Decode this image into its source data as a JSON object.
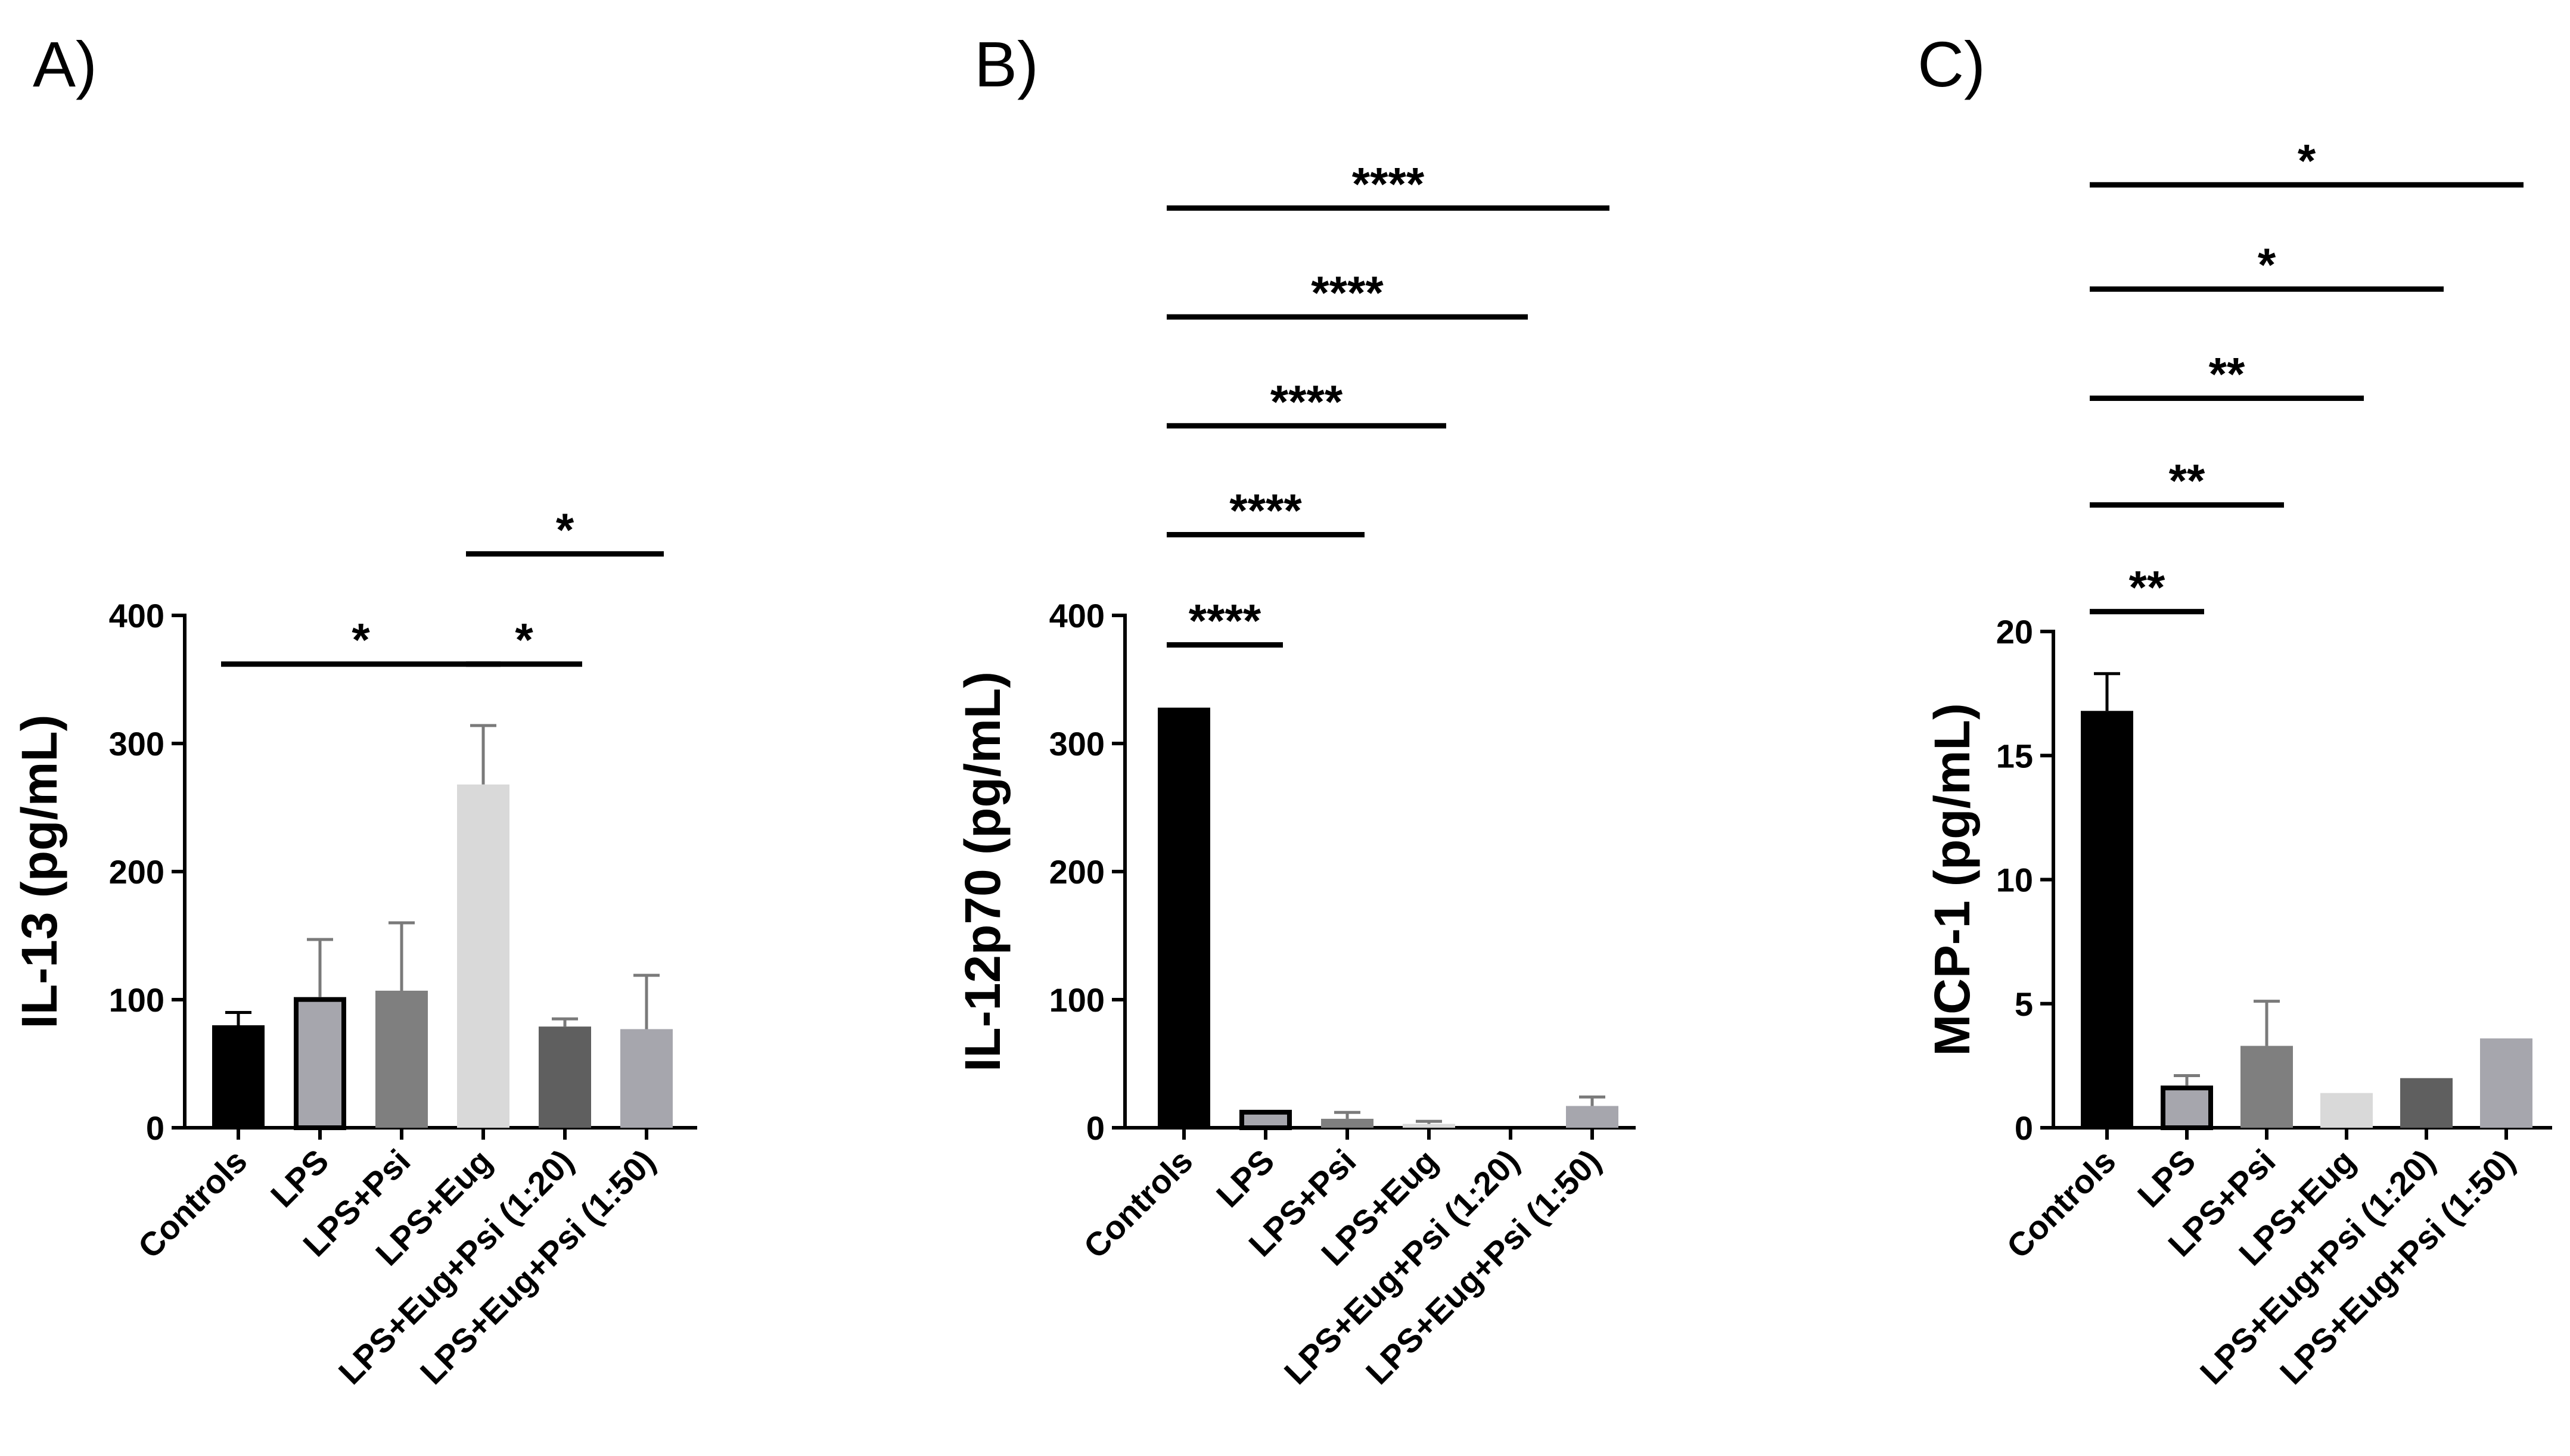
{
  "chart_data": [
    {
      "type": "bar",
      "panel_label": "A)",
      "title": "",
      "xlabel": "",
      "ylabel": "IL-13 (pg/mL)",
      "ylim": [
        0,
        400
      ],
      "yticks": [
        "0",
        "100",
        "200",
        "300",
        "400"
      ],
      "categories": [
        "Controls",
        "LPS",
        "LPS+Psi",
        "LPS+Eug",
        "LPS+Eug+Psi (1:20)",
        "LPS+Eug+Psi (1:50)"
      ],
      "values": [
        80,
        102,
        107,
        268,
        79,
        77
      ],
      "errors": [
        10,
        45,
        53,
        46,
        6,
        42
      ],
      "colors": [
        "#000000",
        "#a6a6ad",
        "#7f7f7f",
        "#d9d9d9",
        "#5f5f5f",
        "#a6a6ad"
      ],
      "outlined": [
        false,
        true,
        false,
        false,
        false,
        false
      ],
      "significance": [
        {
          "from": 0,
          "to": 3,
          "label": "*",
          "y": 362
        },
        {
          "from": 3,
          "to": 4,
          "label": "*",
          "y": 362
        },
        {
          "from": 3,
          "to": 5,
          "label": "*",
          "y": 448
        }
      ]
    },
    {
      "type": "bar",
      "panel_label": "B)",
      "title": "",
      "xlabel": "",
      "ylabel": "IL-12p70 (pg/mL)",
      "ylim": [
        0,
        400
      ],
      "yticks": [
        "0",
        "100",
        "200",
        "300",
        "400"
      ],
      "categories": [
        "Controls",
        "LPS",
        "LPS+Psi",
        "LPS+Eug",
        "LPS+Eug+Psi (1:20)",
        "LPS+Eug+Psi (1:50)"
      ],
      "values": [
        328,
        14,
        7,
        3,
        0,
        17
      ],
      "errors": [
        0,
        0,
        5,
        2,
        0,
        7
      ],
      "colors": [
        "#000000",
        "#a6a6ad",
        "#7f7f7f",
        "#d9d9d9",
        "#5f5f5f",
        "#a6a6ad"
      ],
      "outlined": [
        false,
        true,
        false,
        false,
        false,
        false
      ],
      "significance": [
        {
          "from": 0,
          "to": 1,
          "label": "****",
          "y": 377
        },
        {
          "from": 0,
          "to": 2,
          "label": "****",
          "y": 463
        },
        {
          "from": 0,
          "to": 3,
          "label": "****",
          "y": 548
        },
        {
          "from": 0,
          "to": 4,
          "label": "****",
          "y": 633
        },
        {
          "from": 0,
          "to": 5,
          "label": "****",
          "y": 718
        }
      ]
    },
    {
      "type": "bar",
      "panel_label": "C)",
      "title": "",
      "xlabel": "",
      "ylabel": "MCP-1 (pg/mL)",
      "ylim": [
        0,
        20
      ],
      "yticks": [
        "0",
        "5",
        "10",
        "15",
        "20"
      ],
      "categories": [
        "Controls",
        "LPS",
        "LPS+Psi",
        "LPS+Eug",
        "LPS+Eug+Psi (1:20)",
        "LPS+Eug+Psi (1:50)"
      ],
      "values": [
        16.8,
        1.7,
        3.3,
        1.4,
        2.0,
        3.6
      ],
      "errors": [
        1.5,
        0.4,
        1.8,
        0,
        0,
        0
      ],
      "colors": [
        "#000000",
        "#a6a6ad",
        "#7f7f7f",
        "#d9d9d9",
        "#5f5f5f",
        "#a6a6ad"
      ],
      "outlined": [
        false,
        true,
        false,
        false,
        false,
        false
      ],
      "significance": [
        {
          "from": 0,
          "to": 1,
          "label": "**",
          "y": 20.8
        },
        {
          "from": 0,
          "to": 2,
          "label": "**",
          "y": 25.1
        },
        {
          "from": 0,
          "to": 3,
          "label": "**",
          "y": 29.4
        },
        {
          "from": 0,
          "to": 4,
          "label": "*",
          "y": 33.8
        },
        {
          "from": 0,
          "to": 5,
          "label": "*",
          "y": 38.0
        }
      ]
    }
  ]
}
